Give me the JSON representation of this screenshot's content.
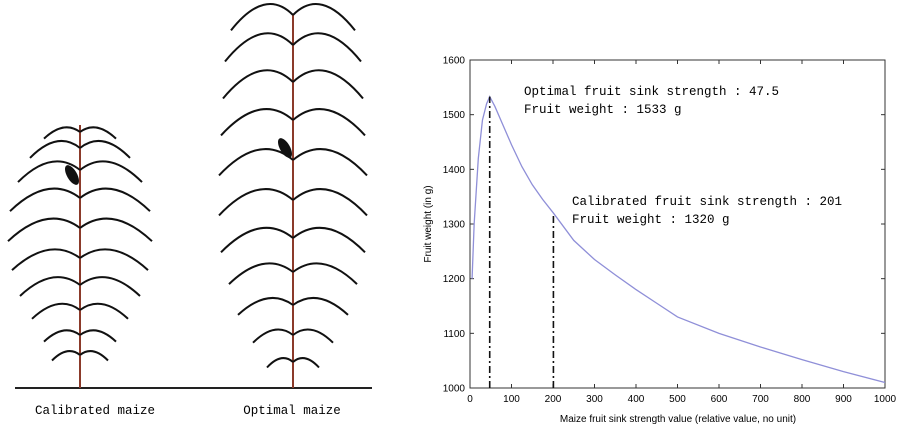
{
  "panel_labels": [
    "Calibrated maize",
    "Optimal maize"
  ],
  "chart_data": {
    "type": "line",
    "xlabel": "Maize fruit sink strength value (relative value, no unit)",
    "ylabel": "Fruit weight (in g)",
    "x": [
      5,
      10,
      20,
      30,
      40,
      47.5,
      60,
      80,
      100,
      125,
      150,
      175,
      201,
      250,
      300,
      350,
      400,
      450,
      500,
      600,
      700,
      800,
      900,
      1000
    ],
    "series": [
      {
        "color": "#8f8fd8",
        "values": [
          1200,
          1300,
          1420,
          1490,
          1520,
          1533,
          1515,
          1480,
          1445,
          1405,
          1372,
          1345,
          1320,
          1270,
          1235,
          1207,
          1180,
          1155,
          1130,
          1100,
          1075,
          1052,
          1030,
          1010
        ]
      }
    ],
    "reference_lines": [
      {
        "x": 47.5,
        "y": 1533
      },
      {
        "x": 201,
        "y": 1320
      }
    ],
    "annotations": [
      [
        "Optimal fruit sink strength : 47.5",
        "Fruit weight : 1533 g"
      ],
      [
        "Calibrated fruit sink strength : 201",
        "Fruit weight : 1320 g"
      ]
    ],
    "xlim": [
      0,
      1000
    ],
    "ylim": [
      1000,
      1600
    ],
    "xticks": [
      0,
      100,
      200,
      300,
      400,
      500,
      600,
      700,
      800,
      900,
      1000
    ],
    "yticks": [
      1000,
      1100,
      1200,
      1300,
      1400,
      1500,
      1600
    ]
  }
}
